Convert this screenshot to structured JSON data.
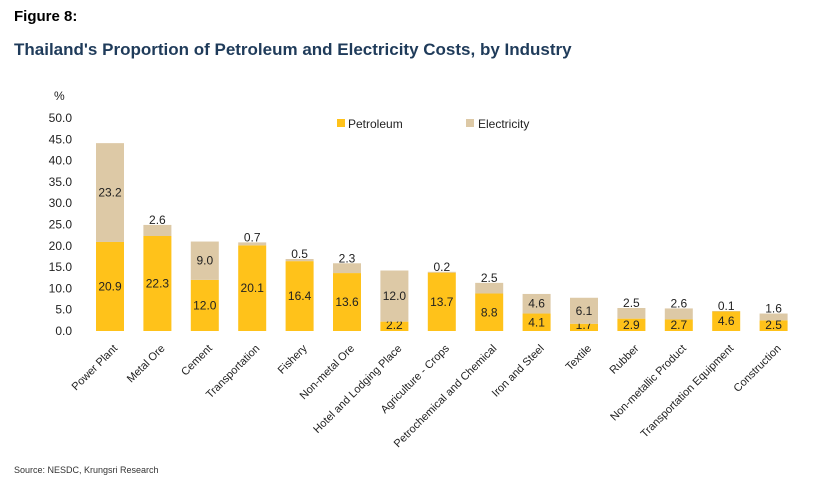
{
  "figure_label": "Figure 8:",
  "source": "Source: NESDC, Krungsri Research",
  "colors": {
    "petroleum": "#FFC21A",
    "electricity": "#DDC9A6"
  },
  "chart_data": {
    "type": "bar",
    "stacked": true,
    "title": "Thailand's Proportion of Petroleum and Electricity Costs, by Industry",
    "ylabel": "%",
    "xlabel": "",
    "ylim": [
      0,
      50
    ],
    "yticks": [
      "0.0",
      "5.0",
      "10.0",
      "15.0",
      "20.0",
      "25.0",
      "30.0",
      "35.0",
      "40.0",
      "45.0",
      "50.0"
    ],
    "grid": false,
    "legend": "top-center",
    "categories": [
      "Power Plant",
      "Metal Ore",
      "Cement",
      "Transportation",
      "Fishery",
      "Non-metal Ore",
      "Hotel and Lodging Place",
      "Agriculture - Crops",
      "Petrochemical and Chemical",
      "Iron and Steel",
      "Textile",
      "Rubber",
      "Non-metallic Product",
      "Transportation Equipment",
      "Construction"
    ],
    "series": [
      {
        "name": "Petroleum",
        "values": [
          20.9,
          22.3,
          12.0,
          20.1,
          16.4,
          13.6,
          2.2,
          13.7,
          8.8,
          4.1,
          1.7,
          2.9,
          2.7,
          4.6,
          2.5
        ],
        "labels": [
          "20.9",
          "22.3",
          "12.0",
          "20.1",
          "16.4",
          "13.6",
          "2.2",
          "13.7",
          "8.8",
          "4.1",
          "1.7",
          "2.9",
          "2.7",
          "4.6",
          "2.5"
        ]
      },
      {
        "name": "Electricity",
        "values": [
          23.2,
          2.6,
          9.0,
          0.7,
          0.5,
          2.3,
          12.0,
          0.2,
          2.5,
          4.6,
          6.1,
          2.5,
          2.6,
          0.1,
          1.6
        ],
        "labels": [
          "23.2",
          "2.6",
          "9.0",
          "0.7",
          "0.5",
          "2.3",
          "12.0",
          "0.2",
          "2.5",
          "4.6",
          "6.1",
          "2.5",
          "2.6",
          "0.1",
          "1.6"
        ]
      }
    ]
  }
}
